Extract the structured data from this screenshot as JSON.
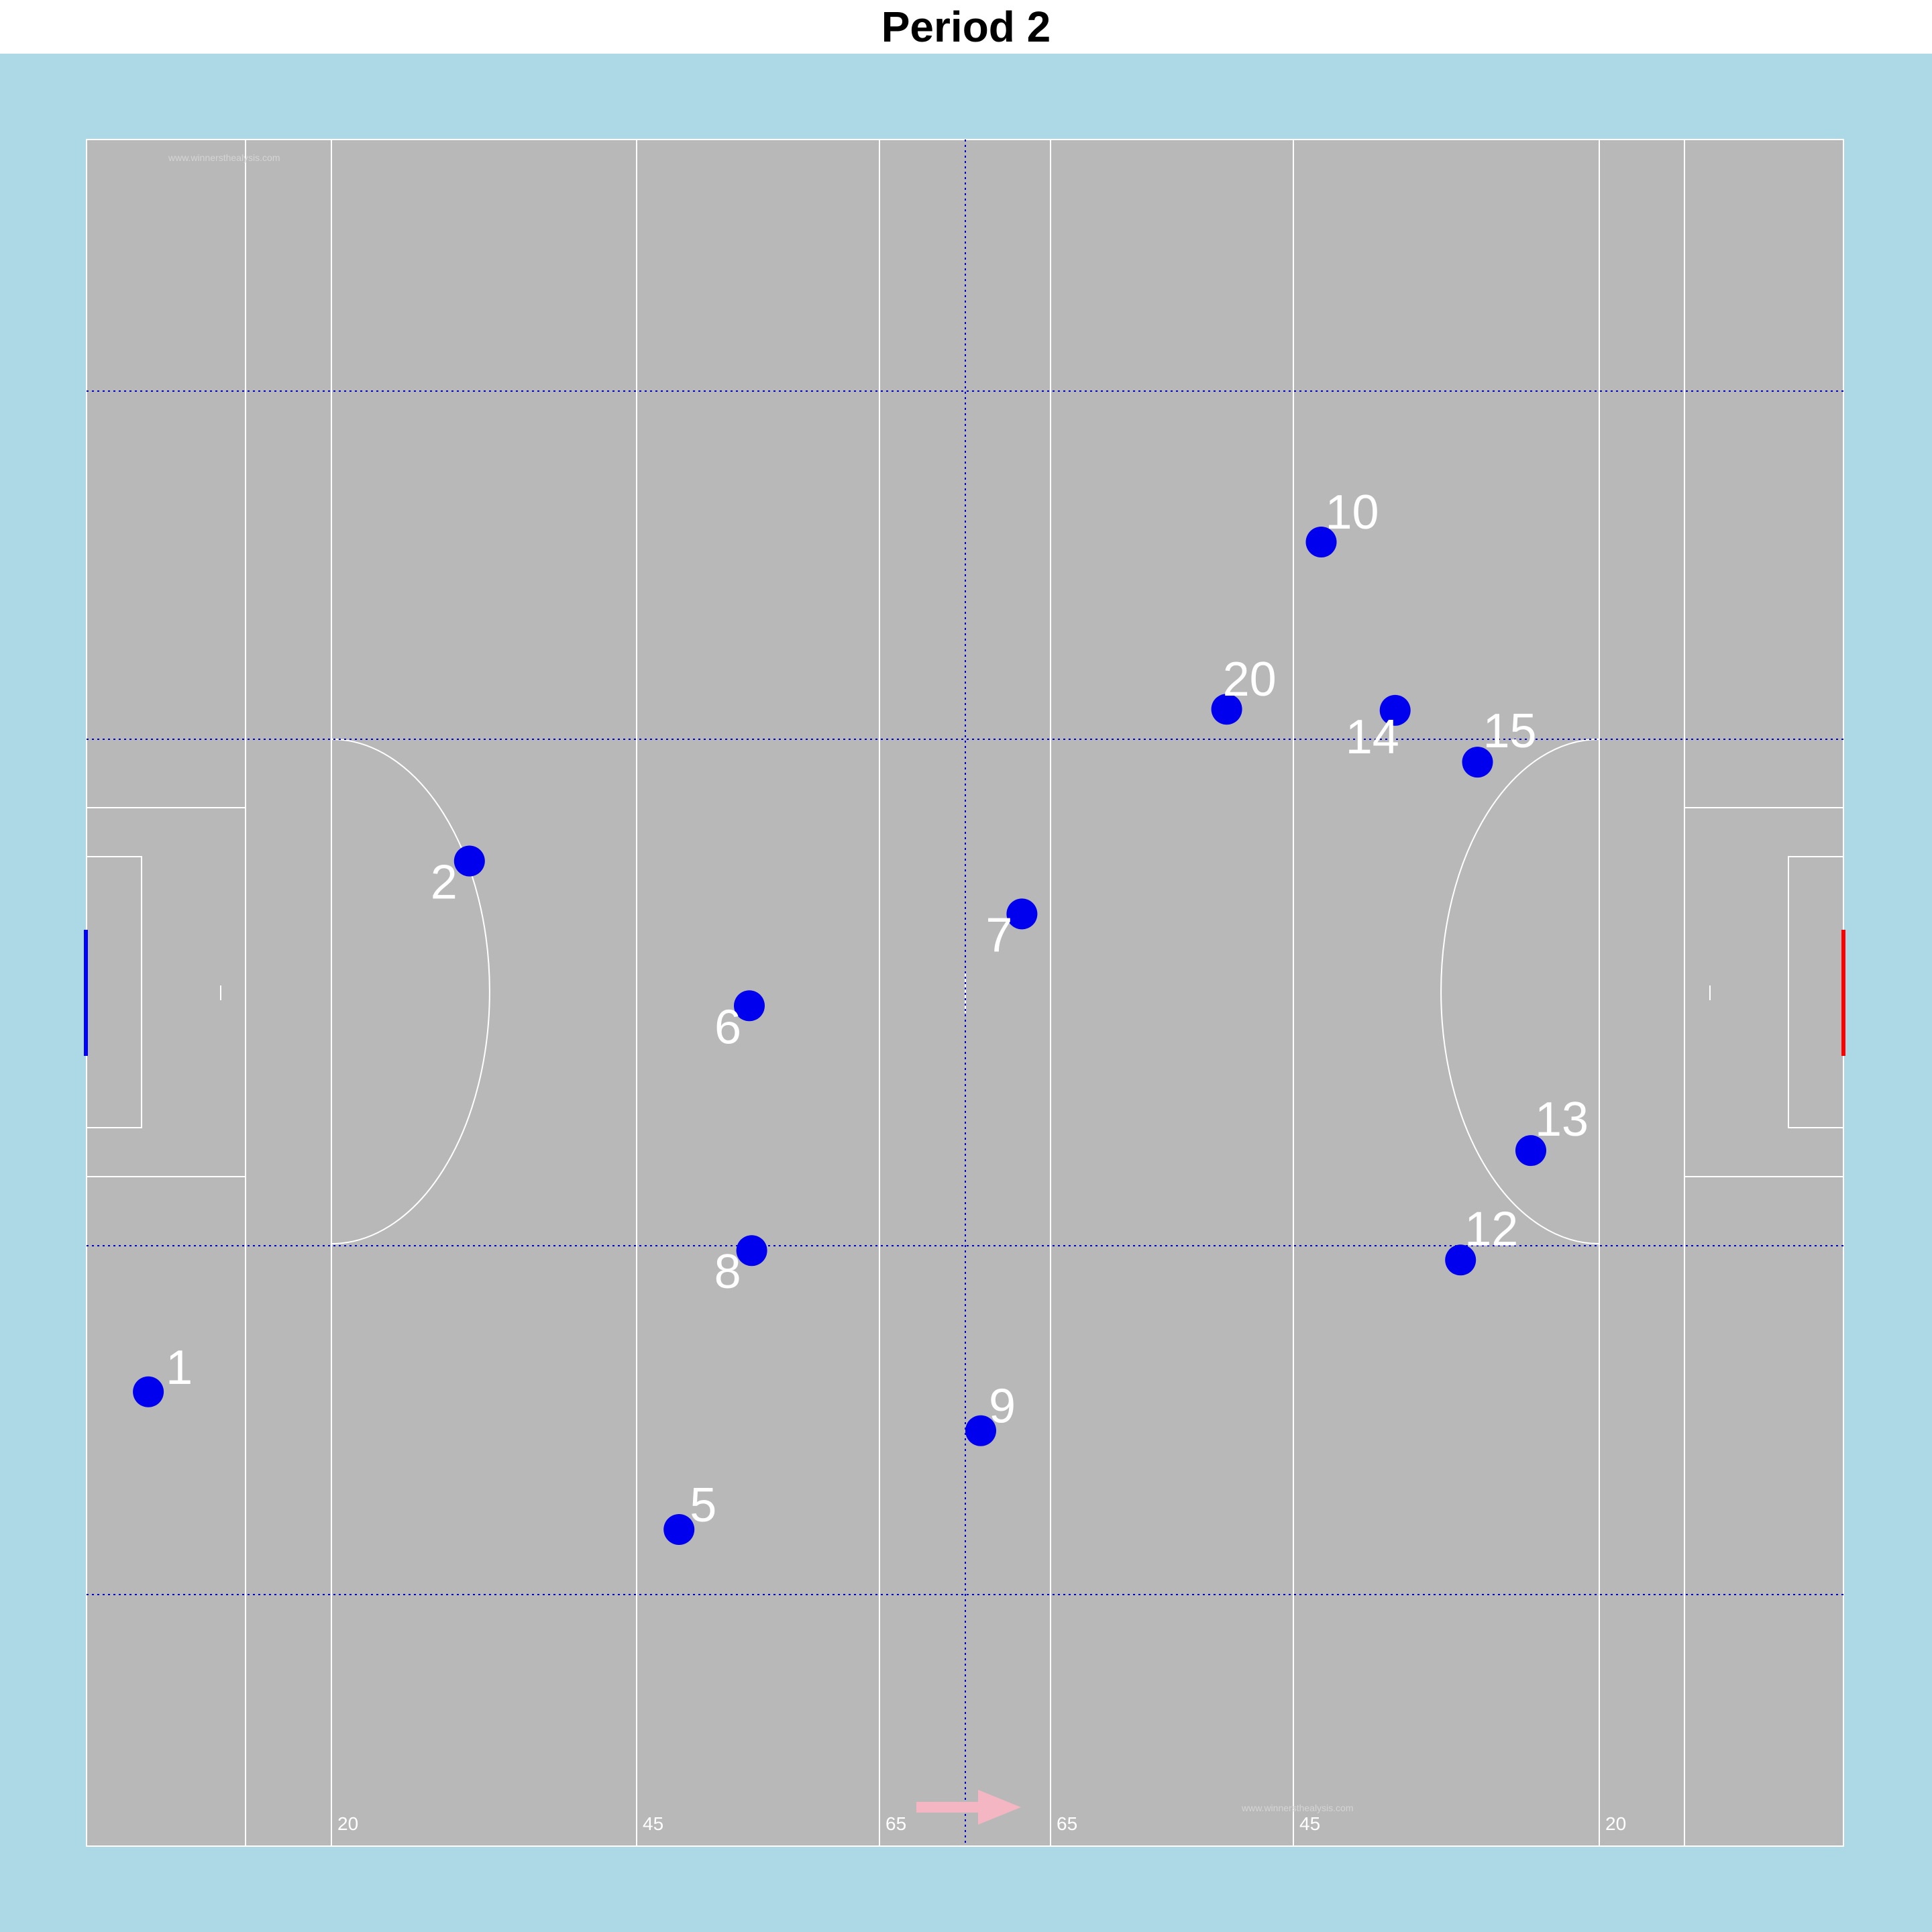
{
  "title": "Period 2",
  "colors": {
    "surround": "#add8e6",
    "pitch": "#b8b8b8",
    "lines": "#ffffff",
    "zone_lines": "#0000cc",
    "player": "#0000ee",
    "left_goal": "#0000ff",
    "right_goal": "#ff0000",
    "direction_arrow": "#f4b6c2"
  },
  "watermarks": [
    "www.winnersthealysis.com",
    "www.winnersthealysis.com"
  ],
  "distance_labels": [
    "20",
    "45",
    "65",
    "65",
    "45",
    "20"
  ],
  "attack_direction": "right",
  "chart_data": {
    "type": "scatter",
    "title": "Period 2",
    "x_range": [
      0,
      145
    ],
    "y_range": [
      0,
      145
    ],
    "players": [
      {
        "number": "1",
        "x": 5.1,
        "y": 38.6
      },
      {
        "number": "2",
        "x": 31.6,
        "y": 83.7
      },
      {
        "number": "5",
        "x": 48.9,
        "y": 26.9
      },
      {
        "number": "6",
        "x": 54.7,
        "y": 71.4
      },
      {
        "number": "7",
        "x": 77.2,
        "y": 79.2
      },
      {
        "number": "8",
        "x": 54.9,
        "y": 50.6
      },
      {
        "number": "9",
        "x": 73.8,
        "y": 35.3
      },
      {
        "number": "10",
        "x": 101.9,
        "y": 110.8
      },
      {
        "number": "12",
        "x": 113.4,
        "y": 49.8
      },
      {
        "number": "13",
        "x": 119.2,
        "y": 59.1
      },
      {
        "number": "14",
        "x": 108.0,
        "y": 96.5
      },
      {
        "number": "15",
        "x": 114.8,
        "y": 92.1
      },
      {
        "number": "20",
        "x": 94.1,
        "y": 96.6
      }
    ]
  }
}
